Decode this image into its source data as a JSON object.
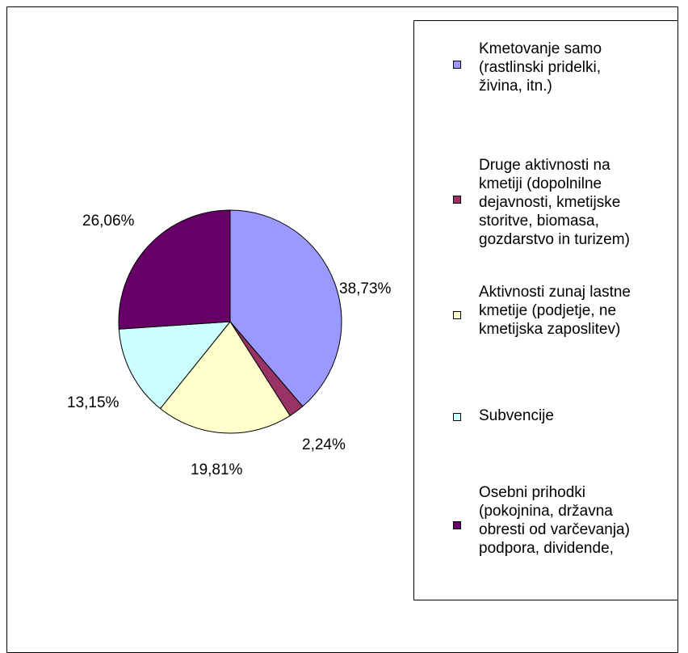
{
  "chart_data": {
    "type": "pie",
    "slices": [
      {
        "label": "Kmetovanje samo\n(rastlinski pridelki,\nživina, itn.)",
        "value": 38.73,
        "value_label": "38,73%",
        "color": "#9999ff"
      },
      {
        "label": "Druge aktivnosti na\nkmetiji (dopolnilne\ndejavnosti, kmetijske\nstoritve, biomasa,\ngozdarstvo in turizem)",
        "value": 2.24,
        "value_label": "2,24%",
        "color": "#993366"
      },
      {
        "label": "Aktivnosti zunaj lastne\nkmetije (podjetje, ne\nkmetijska zaposlitev)",
        "value": 19.81,
        "value_label": "19,81%",
        "color": "#ffffcc"
      },
      {
        "label": "Subvencije",
        "value": 13.15,
        "value_label": "13,15%",
        "color": "#ccffff"
      },
      {
        "label": "Osebni prihodki\n(pokojnina, državna\nobresti od varčevanja)\npodpora, dividende,",
        "value": 26.06,
        "value_label": "26,06%",
        "color": "#660066"
      }
    ],
    "legend_position": "right"
  }
}
